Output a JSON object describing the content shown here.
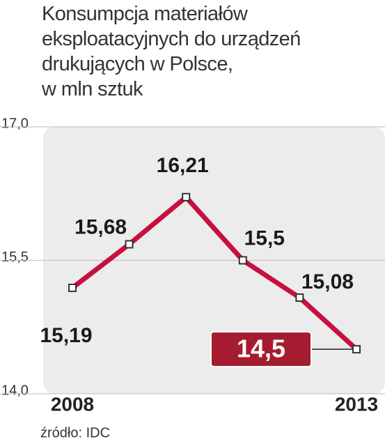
{
  "chart_data": {
    "type": "line",
    "title": "Konsumpcja materiałów\neksploatacyjnych do urządzeń\ndrukujących w Polsce,\nw mln sztuk",
    "categories": [
      "2008",
      null,
      null,
      null,
      null,
      "2013"
    ],
    "series": [
      {
        "color": "#c8103e",
        "values": [
          15.19,
          15.68,
          16.21,
          15.5,
          15.08,
          14.5
        ],
        "value_labels": [
          "15,19",
          "15,68",
          "16,21",
          "15,5",
          "15,08",
          "14,5"
        ]
      }
    ],
    "ylim": [
      14,
      17
    ],
    "yticks": [
      {
        "value": 14,
        "label": "14,0"
      },
      {
        "value": 15.5,
        "label": "15,5"
      },
      {
        "value": 17,
        "label": "17,0"
      }
    ],
    "grid": true,
    "source": "źródło: IDC"
  }
}
